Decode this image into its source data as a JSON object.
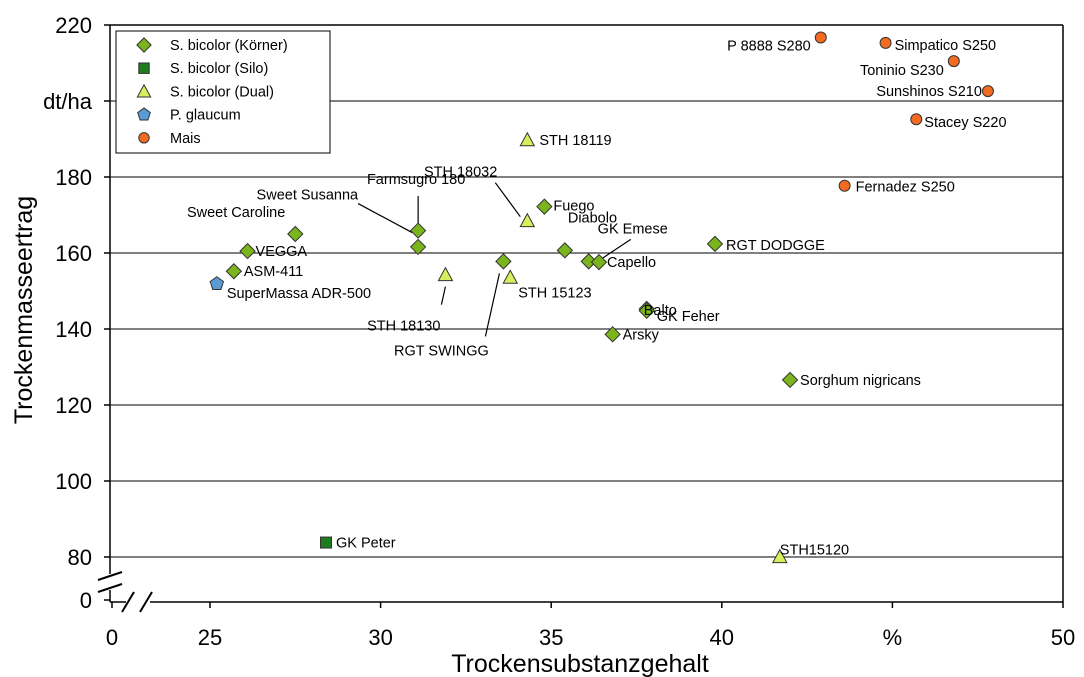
{
  "chart_data": {
    "type": "scatter",
    "xlabel": "Trockensubstanzgehalt",
    "ylabel": "Trockenmasseertrag",
    "x_ticks": [
      {
        "value": "0",
        "label": "0"
      },
      {
        "value": 25,
        "label": "25"
      },
      {
        "value": 30,
        "label": "30"
      },
      {
        "value": 35,
        "label": "35"
      },
      {
        "value": 40,
        "label": "40"
      },
      {
        "value": 45,
        "label": "%"
      },
      {
        "value": 50,
        "label": "50"
      }
    ],
    "y_ticks": [
      {
        "value": "0",
        "label": "0"
      },
      {
        "value": 80,
        "label": "80"
      },
      {
        "value": 100,
        "label": "100"
      },
      {
        "value": 120,
        "label": "120"
      },
      {
        "value": 140,
        "label": "140"
      },
      {
        "value": 160,
        "label": "160"
      },
      {
        "value": 180,
        "label": "180"
      },
      {
        "value": 200,
        "label": "dt/ha"
      },
      {
        "value": 220,
        "label": "220"
      }
    ],
    "xlim": [
      22.5,
      50
    ],
    "ylim": [
      77,
      220
    ],
    "axis_breaks": {
      "x": true,
      "y": true
    },
    "gridlines": "horizontal",
    "legend_position": "top-left",
    "series": [
      {
        "name": "S. bicolor (Körner)",
        "marker": "diamond",
        "color": "#7ab51d",
        "points": [
          {
            "label": "Sweet Caroline",
            "x": 27.5,
            "y": 165
          },
          {
            "label": "Sweet Susanna",
            "x": 31.1,
            "y": 165.9
          },
          {
            "label": "Farmsugro 180",
            "x": 31.1,
            "y": 161.6
          },
          {
            "label": "VEGGA",
            "x": 26.1,
            "y": 160.5
          },
          {
            "label": "ASM-411",
            "x": 25.7,
            "y": 155.2
          },
          {
            "label": "Fuego",
            "x": 34.8,
            "y": 172.2
          },
          {
            "label": "RGT SWINGG",
            "x": 33.6,
            "y": 157.8
          },
          {
            "label": "Diabolo",
            "x": 35.4,
            "y": 160.7
          },
          {
            "label": "GK Emese",
            "x": 36.1,
            "y": 157.8
          },
          {
            "label": "Capello",
            "x": 36.4,
            "y": 157.6
          },
          {
            "label": "RGT DODGGE",
            "x": 39.8,
            "y": 162.4
          },
          {
            "label": "Balto",
            "x": 37.8,
            "y": 145.3
          },
          {
            "label": "GK Feher",
            "x": 37.8,
            "y": 144.8
          },
          {
            "label": "Arsky",
            "x": 36.8,
            "y": 138.6
          },
          {
            "label": "Sorghum nigricans",
            "x": 42.0,
            "y": 126.6
          }
        ]
      },
      {
        "name": "S. bicolor (Silo)",
        "marker": "square",
        "color": "#1e7b1e",
        "points": [
          {
            "label": "GK Peter",
            "x": 28.4,
            "y": 83.8
          }
        ]
      },
      {
        "name": "S. bicolor (Dual)",
        "marker": "triangle",
        "color": "#d9ee5c",
        "points": [
          {
            "label": "STH 18119",
            "x": 34.3,
            "y": 189.8
          },
          {
            "label": "STH 18032",
            "x": 34.3,
            "y": 168.5
          },
          {
            "label": "STH 18130",
            "x": 31.9,
            "y": 154.3
          },
          {
            "label": "STH 15123",
            "x": 33.8,
            "y": 153.6
          },
          {
            "label": "STH15120",
            "x": 41.7,
            "y": 80.1
          }
        ]
      },
      {
        "name": "P. glaucum",
        "marker": "pentagon",
        "color": "#5b9bd5",
        "points": [
          {
            "label": "SuperMassa ADR-500",
            "x": 25.2,
            "y": 151.9
          }
        ]
      },
      {
        "name": "Mais",
        "marker": "circle",
        "color": "#f36b21",
        "points": [
          {
            "label": "P 8888 S280",
            "x": 42.9,
            "y": 216.7
          },
          {
            "label": "Simpatico S250",
            "x": 44.8,
            "y": 215.3
          },
          {
            "label": "Toninio S230",
            "x": 46.8,
            "y": 210.5
          },
          {
            "label": "Sunshinos S210",
            "x": 47.8,
            "y": 202.6
          },
          {
            "label": "Stacey S220",
            "x": 45.7,
            "y": 195.2
          },
          {
            "label": "Fernadez S250",
            "x": 43.6,
            "y": 177.7
          }
        ]
      }
    ]
  }
}
